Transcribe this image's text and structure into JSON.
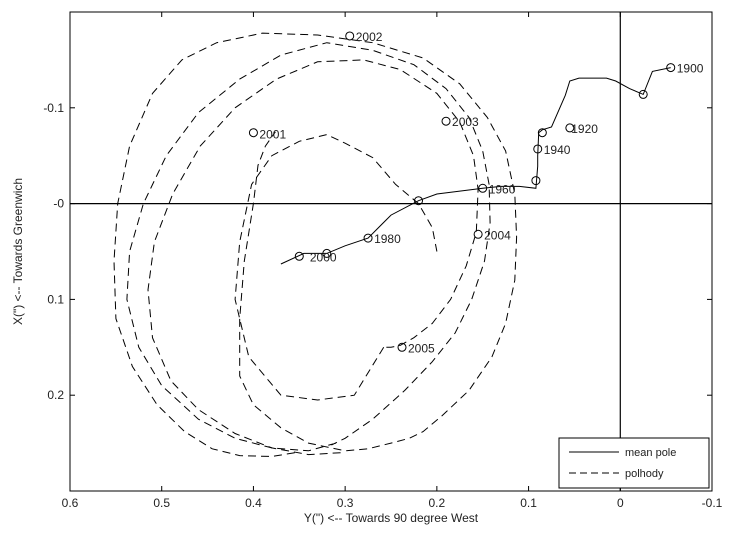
{
  "chart_data": {
    "type": "line",
    "xlabel": "Y(\") <-- Towards 90 degree West",
    "ylabel": "X(\") <-- Towards Greenwich",
    "xlim": [
      0.6,
      -0.1
    ],
    "ylim": [
      -0.2,
      0.3
    ],
    "x_inverted": true,
    "y_inverted": true,
    "x_ticks": [
      0.6,
      0.5,
      0.4,
      0.3,
      0.2,
      0.1,
      0,
      -0.1
    ],
    "x_tick_labels": [
      "0.6",
      "0.5",
      "0.4",
      "0.3",
      "0.2",
      "0.1",
      "0",
      "-0.1"
    ],
    "y_ticks": [
      -0.1,
      0,
      0.1,
      0.2
    ],
    "y_tick_labels": [
      "-0.1",
      "-0",
      "0.1",
      "0.2"
    ],
    "grid": false,
    "reference_lines": {
      "horizontal_y": 0,
      "vertical_x": 0
    },
    "legend": {
      "placement": "bottom-right",
      "entries": [
        {
          "label": "mean pole",
          "style": "solid"
        },
        {
          "label": "polhody",
          "style": "dashed"
        }
      ]
    },
    "series": [
      {
        "name": "mean pole",
        "style": "solid",
        "x": [
          -0.055,
          -0.035,
          -0.025,
          -0.01,
          0.005,
          0.015,
          0.03,
          0.045,
          0.055,
          0.06,
          0.075,
          0.085,
          0.089,
          0.09,
          0.09,
          0.092,
          0.11,
          0.13,
          0.15,
          0.175,
          0.2,
          0.22,
          0.25,
          0.275,
          0.3,
          0.32,
          0.345,
          0.37
        ],
        "y": [
          -0.142,
          -0.138,
          -0.114,
          -0.12,
          -0.128,
          -0.131,
          -0.131,
          -0.131,
          -0.128,
          -0.113,
          -0.08,
          -0.077,
          -0.074,
          -0.05,
          -0.039,
          -0.016,
          -0.018,
          -0.018,
          -0.016,
          -0.013,
          -0.01,
          -0.003,
          0.012,
          0.036,
          0.044,
          0.052,
          0.052,
          0.063
        ]
      },
      {
        "name": "polhody",
        "style": "dashed",
        "x": [
          0.355,
          0.38,
          0.415,
          0.445,
          0.475,
          0.505,
          0.532,
          0.55,
          0.552,
          0.548,
          0.535,
          0.51,
          0.478,
          0.44,
          0.39,
          0.33,
          0.27,
          0.215,
          0.175,
          0.145,
          0.125,
          0.115,
          0.113,
          0.115,
          0.125,
          0.14,
          0.165,
          0.195,
          0.215,
          0.23,
          0.25,
          0.275,
          0.3,
          0.34,
          0.37,
          0.4,
          0.415,
          0.415,
          0.41,
          0.4,
          0.395,
          0.387,
          0.376
        ],
        "y": [
          0.26,
          0.264,
          0.263,
          0.256,
          0.238,
          0.21,
          0.17,
          0.12,
          0.06,
          0.0,
          -0.06,
          -0.115,
          -0.15,
          -0.168,
          -0.178,
          -0.176,
          -0.168,
          -0.152,
          -0.125,
          -0.09,
          -0.055,
          -0.01,
          0.035,
          0.08,
          0.125,
          0.16,
          0.195,
          0.222,
          0.238,
          0.245,
          0.25,
          0.256,
          0.258,
          0.25,
          0.234,
          0.21,
          0.18,
          0.12,
          0.06,
          0.0,
          -0.04,
          -0.06,
          -0.075
        ]
      },
      {
        "name": "polhody",
        "style": "dashed",
        "x": [
          0.31,
          0.34,
          0.38,
          0.42,
          0.46,
          0.5,
          0.525,
          0.538,
          0.535,
          0.52,
          0.495,
          0.46,
          0.415,
          0.37,
          0.32,
          0.27,
          0.225,
          0.19,
          0.165,
          0.15,
          0.143,
          0.142,
          0.148,
          0.162,
          0.18,
          0.205,
          0.235,
          0.27,
          0.3,
          0.315
        ],
        "y": [
          0.25,
          0.258,
          0.255,
          0.245,
          0.225,
          0.19,
          0.15,
          0.1,
          0.05,
          0.0,
          -0.05,
          -0.095,
          -0.13,
          -0.155,
          -0.168,
          -0.16,
          -0.145,
          -0.12,
          -0.09,
          -0.055,
          -0.02,
          0.02,
          0.06,
          0.1,
          0.135,
          0.165,
          0.195,
          0.225,
          0.245,
          0.252
        ]
      },
      {
        "name": "polhody",
        "style": "dashed",
        "x": [
          0.305,
          0.34,
          0.38,
          0.42,
          0.46,
          0.49,
          0.51,
          0.515,
          0.508,
          0.488,
          0.458,
          0.42,
          0.375,
          0.33,
          0.28,
          0.24,
          0.2,
          0.175,
          0.16,
          0.155,
          0.157,
          0.168,
          0.185,
          0.205,
          0.225,
          0.24,
          0.25,
          0.258
        ],
        "y": [
          0.26,
          0.262,
          0.255,
          0.24,
          0.215,
          0.185,
          0.14,
          0.09,
          0.04,
          -0.01,
          -0.06,
          -0.1,
          -0.13,
          -0.148,
          -0.15,
          -0.14,
          -0.115,
          -0.085,
          -0.05,
          -0.015,
          0.03,
          0.065,
          0.1,
          0.125,
          0.14,
          0.148,
          0.15,
          0.15
        ]
      },
      {
        "name": "polhody",
        "style": "dashed",
        "x": [
          0.258,
          0.29,
          0.33,
          0.37,
          0.405,
          0.42,
          0.415,
          0.402,
          0.38,
          0.35,
          0.32,
          0.3,
          0.27,
          0.245,
          0.22,
          0.205,
          0.2
        ],
        "y": [
          0.15,
          0.2,
          0.205,
          0.2,
          0.16,
          0.1,
          0.04,
          -0.02,
          -0.05,
          -0.065,
          -0.072,
          -0.063,
          -0.048,
          -0.02,
          0.0,
          0.025,
          0.05
        ]
      }
    ],
    "annotations": [
      {
        "text": "1900",
        "x": -0.055,
        "y": -0.142
      },
      {
        "text": "1920",
        "x": 0.06,
        "y": -0.079
      },
      {
        "text": "1940",
        "x": 0.09,
        "y": -0.057
      },
      {
        "text": "1960",
        "x": 0.15,
        "y": -0.016
      },
      {
        "text": "1980",
        "x": 0.275,
        "y": 0.036
      },
      {
        "text": "2000",
        "x": 0.345,
        "y": 0.055
      },
      {
        "text": "2001",
        "x": 0.4,
        "y": -0.073
      },
      {
        "text": "2002",
        "x": 0.295,
        "y": -0.175
      },
      {
        "text": "2003",
        "x": 0.19,
        "y": -0.086
      },
      {
        "text": "2004",
        "x": 0.155,
        "y": 0.032
      },
      {
        "text": "2005",
        "x": 0.238,
        "y": 0.15
      }
    ],
    "markers": [
      {
        "x": -0.055,
        "y": -0.142
      },
      {
        "x": -0.025,
        "y": -0.114
      },
      {
        "x": 0.055,
        "y": -0.079
      },
      {
        "x": 0.085,
        "y": -0.074
      },
      {
        "x": 0.09,
        "y": -0.057
      },
      {
        "x": 0.092,
        "y": -0.024
      },
      {
        "x": 0.15,
        "y": -0.016
      },
      {
        "x": 0.22,
        "y": -0.003
      },
      {
        "x": 0.275,
        "y": 0.036
      },
      {
        "x": 0.32,
        "y": 0.052
      },
      {
        "x": 0.35,
        "y": 0.055
      },
      {
        "x": 0.4,
        "y": -0.074
      },
      {
        "x": 0.295,
        "y": -0.175
      },
      {
        "x": 0.19,
        "y": -0.086
      },
      {
        "x": 0.155,
        "y": 0.032
      },
      {
        "x": 0.238,
        "y": 0.15
      }
    ]
  }
}
